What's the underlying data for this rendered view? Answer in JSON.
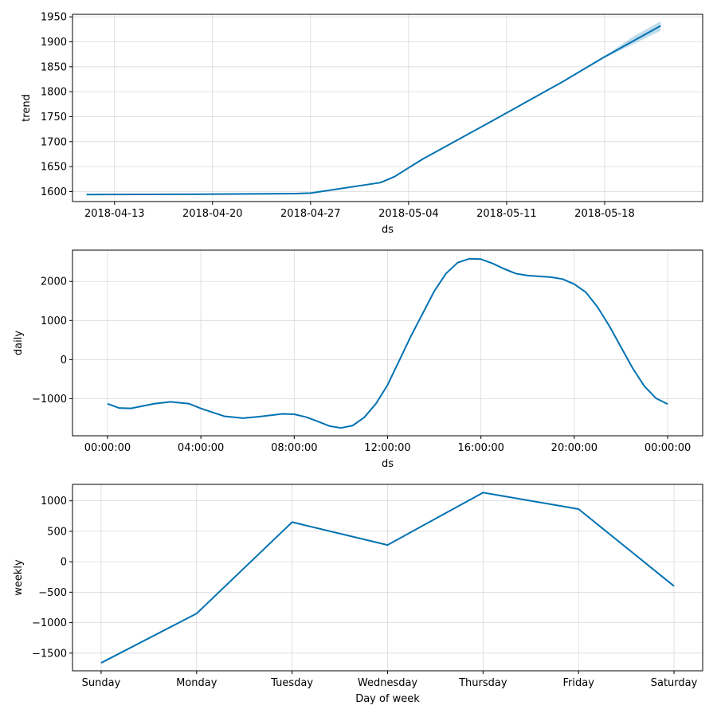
{
  "chart_data": [
    {
      "type": "line",
      "xaxis": "date",
      "xlabel": "ds",
      "ylabel": "trend",
      "xlim": [
        "2018-04-10",
        "2018-05-25"
      ],
      "ylim": [
        1580,
        1955
      ],
      "xticks": [
        "2018-04-13",
        "2018-04-20",
        "2018-04-27",
        "2018-05-04",
        "2018-05-11",
        "2018-05-18"
      ],
      "yticks": [
        1600,
        1650,
        1700,
        1750,
        1800,
        1850,
        1900,
        1950
      ],
      "grid": true,
      "line_color": "#0072B2",
      "band_color": "#0072B2",
      "series": [
        {
          "x": [
            "2018-04-11",
            "2018-04-18",
            "2018-04-24",
            "2018-04-26",
            "2018-04-27",
            "2018-05-02",
            "2018-05-03",
            "2018-05-05",
            "2018-05-10",
            "2018-05-15",
            "2018-05-18",
            "2018-05-22"
          ],
          "y": [
            1594,
            1594.5,
            1595.5,
            1596,
            1597,
            1618,
            1630,
            1665,
            1742,
            1820,
            1870,
            1932
          ]
        }
      ],
      "uncertainty": {
        "x": [
          "2018-05-18",
          "2018-05-20",
          "2018-05-22"
        ],
        "lower": [
          1867,
          1895,
          1922
        ],
        "upper": [
          1871,
          1910,
          1941
        ]
      }
    },
    {
      "type": "line",
      "xaxis": "hours",
      "xlabel": "ds",
      "ylabel": "daily",
      "xlim": [
        -1.5,
        25.5
      ],
      "ylim": [
        -1950,
        2800
      ],
      "xticks": [
        "00:00:00",
        "04:00:00",
        "08:00:00",
        "12:00:00",
        "16:00:00",
        "20:00:00",
        "00:00:00"
      ],
      "xtick_hours": [
        0,
        4,
        8,
        12,
        16,
        20,
        24
      ],
      "yticks": [
        -1000,
        0,
        1000,
        2000
      ],
      "grid": true,
      "line_color": "#0072B2",
      "series": [
        {
          "x": [
            0,
            0.5,
            1,
            2,
            2.7,
            3.5,
            4,
            5,
            5.8,
            6.5,
            7.5,
            8,
            8.5,
            9,
            9.5,
            10,
            10.5,
            11,
            11.5,
            12,
            13,
            14,
            14.5,
            15,
            15.5,
            16,
            16.5,
            17,
            17.5,
            18,
            18.5,
            19,
            19.5,
            20,
            20.5,
            21,
            21.5,
            22,
            22.5,
            23,
            23.5,
            24
          ],
          "y": [
            -1130,
            -1240,
            -1250,
            -1130,
            -1080,
            -1130,
            -1250,
            -1450,
            -1500,
            -1460,
            -1390,
            -1400,
            -1470,
            -1580,
            -1700,
            -1750,
            -1690,
            -1480,
            -1130,
            -650,
            600,
            1750,
            2200,
            2480,
            2580,
            2570,
            2460,
            2320,
            2200,
            2150,
            2130,
            2110,
            2060,
            1930,
            1720,
            1340,
            860,
            320,
            -220,
            -680,
            -990,
            -1140
          ]
        }
      ]
    },
    {
      "type": "line",
      "xlabel": "Day of week",
      "ylabel": "weekly",
      "xlim": [
        -0.3,
        6.3
      ],
      "ylim": [
        -1790,
        1270
      ],
      "categories": [
        "Sunday",
        "Monday",
        "Tuesday",
        "Wednesday",
        "Thursday",
        "Friday",
        "Saturday"
      ],
      "yticks": [
        -1500,
        -1000,
        -500,
        0,
        500,
        1000
      ],
      "grid": true,
      "line_color": "#0072B2",
      "series": [
        {
          "values": [
            -1660,
            -850,
            650,
            275,
            1135,
            865,
            -400
          ]
        }
      ]
    }
  ]
}
